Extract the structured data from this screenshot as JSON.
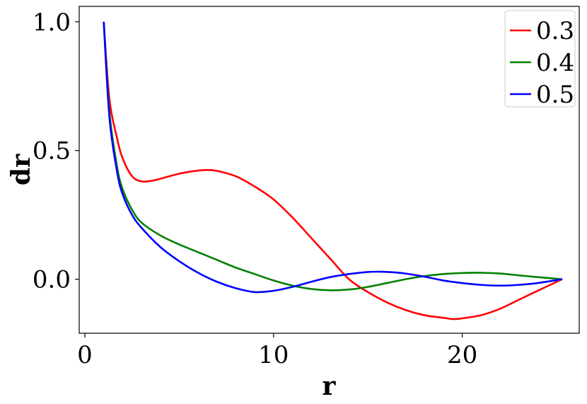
{
  "chart_data": {
    "type": "line",
    "title": "",
    "xlabel": "r",
    "ylabel": "dr",
    "xlim": [
      -0.3,
      26.2
    ],
    "ylim": [
      -0.21,
      1.06
    ],
    "xticks": [
      0,
      10,
      20
    ],
    "xtick_labels": [
      "0",
      "10",
      "20"
    ],
    "yticks": [
      0.0,
      0.5,
      1.0
    ],
    "ytick_labels": [
      "0.0",
      "0.5",
      "1.0"
    ],
    "grid": false,
    "legend_position": "top-right",
    "series": [
      {
        "name": "0.3",
        "color": "#ff0000",
        "x": [
          1.0,
          1.3,
          1.7,
          2.0,
          2.5,
          3.0,
          3.5,
          4.0,
          5.0,
          6.0,
          6.5,
          7.0,
          8.0,
          9.0,
          10.0,
          11.0,
          12.0,
          13.0,
          14.0,
          15.0,
          16.0,
          17.0,
          18.0,
          19.0,
          19.5,
          20.0,
          21.0,
          22.0,
          23.0,
          24.0,
          25.3
        ],
        "y": [
          1.0,
          0.7,
          0.55,
          0.47,
          0.4,
          0.38,
          0.382,
          0.39,
          0.41,
          0.422,
          0.424,
          0.421,
          0.4,
          0.36,
          0.31,
          0.24,
          0.16,
          0.08,
          0.0,
          -0.05,
          -0.09,
          -0.12,
          -0.14,
          -0.15,
          -0.155,
          -0.152,
          -0.14,
          -0.115,
          -0.08,
          -0.045,
          0.0
        ]
      },
      {
        "name": "0.4",
        "color": "#008000",
        "x": [
          1.0,
          1.3,
          1.7,
          2.0,
          2.5,
          3.0,
          4.0,
          5.0,
          6.0,
          7.0,
          8.0,
          9.0,
          10.0,
          11.0,
          12.0,
          13.0,
          14.0,
          15.0,
          16.0,
          17.0,
          18.0,
          19.0,
          20.0,
          21.0,
          22.0,
          23.0,
          24.0,
          25.3
        ],
        "y": [
          1.0,
          0.65,
          0.44,
          0.35,
          0.27,
          0.22,
          0.17,
          0.135,
          0.105,
          0.075,
          0.045,
          0.02,
          -0.005,
          -0.025,
          -0.038,
          -0.043,
          -0.04,
          -0.03,
          -0.015,
          0.0,
          0.012,
          0.02,
          0.024,
          0.025,
          0.022,
          0.015,
          0.008,
          0.0
        ]
      },
      {
        "name": "0.5",
        "color": "#0000ff",
        "x": [
          1.0,
          1.3,
          1.7,
          2.0,
          2.5,
          3.0,
          4.0,
          5.0,
          6.0,
          7.0,
          8.0,
          9.0,
          10.0,
          11.0,
          12.0,
          13.0,
          14.0,
          15.0,
          15.7,
          16.5,
          17.0,
          18.0,
          19.0,
          20.0,
          21.0,
          22.0,
          23.0,
          24.0,
          25.3
        ],
        "y": [
          1.0,
          0.63,
          0.42,
          0.33,
          0.25,
          0.2,
          0.125,
          0.07,
          0.025,
          -0.01,
          -0.035,
          -0.05,
          -0.045,
          -0.03,
          -0.01,
          0.008,
          0.02,
          0.028,
          0.029,
          0.026,
          0.022,
          0.01,
          -0.005,
          -0.015,
          -0.022,
          -0.025,
          -0.022,
          -0.015,
          0.0
        ]
      }
    ]
  }
}
